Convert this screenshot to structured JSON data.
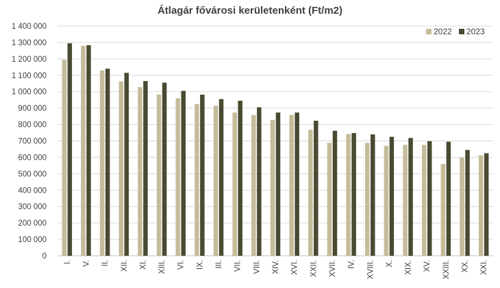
{
  "chart_data": {
    "type": "bar",
    "title": "Átlagár fővárosi kerületenként (Ft/m2)",
    "xlabel": "",
    "ylabel": "",
    "ylim": [
      0,
      1400000
    ],
    "ytick_values": [
      0,
      100000,
      200000,
      300000,
      400000,
      500000,
      600000,
      700000,
      800000,
      900000,
      1000000,
      1100000,
      1200000,
      1300000,
      1400000
    ],
    "ytick_labels": [
      "0",
      "100 000",
      "200 000",
      "300 000",
      "400 000",
      "500 000",
      "600 000",
      "700 000",
      "800 000",
      "900 000",
      "1 000 000",
      "1 100 000",
      "1 200 000",
      "1 300 000",
      "1 400 000"
    ],
    "grid": true,
    "legend_position": "top-right",
    "categories": [
      "I.",
      "V.",
      "II.",
      "XII.",
      "XI.",
      "XIII.",
      "VI.",
      "IX.",
      "III.",
      "VII.",
      "VIII.",
      "XIV.",
      "XVI.",
      "XXII.",
      "XVII.",
      "IV.",
      "XVIII.",
      "X.",
      "XIX.",
      "XV.",
      "XXIII.",
      "XX.",
      "XXI."
    ],
    "series": [
      {
        "name": "2022",
        "color": "#c5bc9a",
        "values": [
          1195000,
          1280000,
          1130000,
          1063000,
          1028000,
          983000,
          960000,
          925000,
          915000,
          873000,
          858000,
          828000,
          858000,
          768000,
          688000,
          742000,
          688000,
          670000,
          676000,
          676000,
          560000,
          598000,
          612000
        ]
      },
      {
        "name": "2023",
        "color": "#4a4a32",
        "values": [
          1295000,
          1283000,
          1140000,
          1115000,
          1065000,
          1055000,
          1005000,
          982000,
          955000,
          945000,
          905000,
          873000,
          873000,
          823000,
          762000,
          748000,
          740000,
          725000,
          718000,
          698000,
          695000,
          645000,
          625000
        ]
      }
    ]
  }
}
